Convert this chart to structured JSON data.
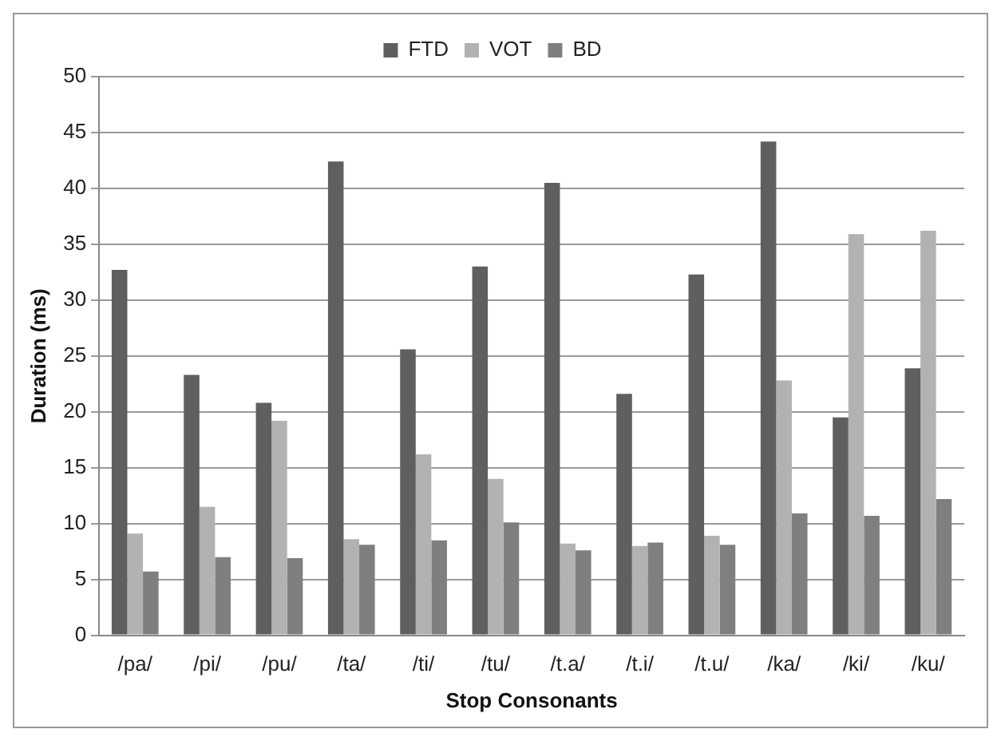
{
  "chart_data": {
    "type": "bar",
    "xlabel": "Stop Consonants",
    "ylabel": "Duration (ms)",
    "categories": [
      "/pa/",
      "/pi/",
      "/pu/",
      "/ta/",
      "/ti/",
      "/tu/",
      "/t.a/",
      "/t.i/",
      "/t.u/",
      "/ka/",
      "/ki/",
      "/ku/"
    ],
    "series": [
      {
        "name": "FTD",
        "color": "#5f5f5f",
        "values": [
          32.7,
          23.3,
          20.8,
          42.4,
          25.6,
          33.0,
          40.5,
          21.6,
          32.3,
          44.2,
          19.5,
          23.9
        ]
      },
      {
        "name": "VOT",
        "color": "#b2b2b2",
        "values": [
          9.1,
          11.5,
          19.2,
          8.6,
          16.2,
          14.0,
          8.2,
          8.0,
          8.9,
          22.8,
          35.9,
          36.2
        ]
      },
      {
        "name": "BD",
        "color": "#7f7f7f",
        "values": [
          5.7,
          7.0,
          6.9,
          8.1,
          8.5,
          10.1,
          7.6,
          8.3,
          8.1,
          10.9,
          10.7,
          12.2
        ]
      }
    ],
    "ylim": [
      0,
      50
    ],
    "yticks": [
      0,
      5,
      10,
      15,
      20,
      25,
      30,
      35,
      40,
      45,
      50
    ],
    "grid": "y",
    "legend": "top"
  }
}
